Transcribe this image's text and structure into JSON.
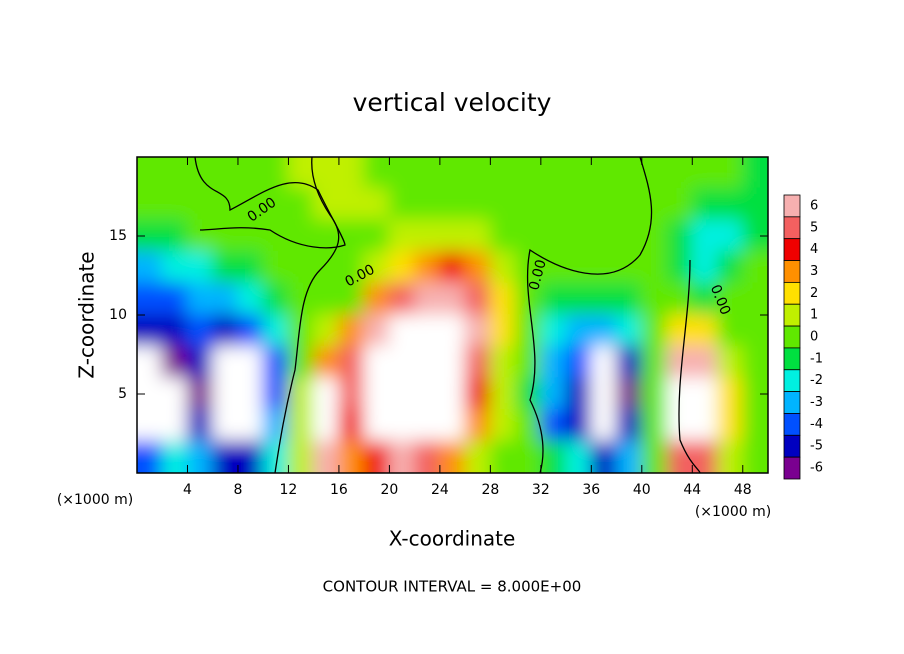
{
  "chart_data": {
    "type": "contour",
    "title": "vertical velocity",
    "x_label": "X-coordinate",
    "y_label": "Z-coordinate",
    "y_unit": "(×1000 m)",
    "x_unit": "(×1000 m)",
    "footer": "CONTOUR INTERVAL = 8.000E+00",
    "contour_labels": [
      "0.00",
      "0.00",
      "0.00",
      "0.00"
    ],
    "x": [
      1,
      3,
      5,
      7,
      9,
      11,
      13,
      15,
      17,
      19,
      21,
      23,
      25,
      27,
      29,
      31,
      33,
      35,
      37,
      39,
      41,
      43,
      45,
      47,
      49
    ],
    "z": [
      19,
      17,
      15,
      13,
      11,
      9,
      7,
      5,
      3,
      1
    ],
    "values": [
      [
        0,
        0,
        0,
        0,
        0,
        0,
        1,
        1,
        1,
        0,
        0,
        0,
        0,
        0,
        0,
        0,
        0,
        0,
        0,
        0,
        0,
        0,
        0,
        0,
        -1
      ],
      [
        0,
        0,
        0,
        0,
        0,
        0,
        0,
        1,
        1,
        1,
        0,
        0,
        0,
        0,
        0,
        0,
        0,
        0,
        0,
        0,
        0,
        0,
        -1,
        -1,
        -1
      ],
      [
        -1,
        -1,
        0,
        0,
        0,
        0,
        0,
        0,
        0,
        0,
        1,
        1,
        1,
        1,
        0,
        0,
        0,
        0,
        0,
        0,
        0,
        -1,
        -2,
        -2,
        -1
      ],
      [
        -3,
        -2,
        -2,
        -1,
        -1,
        0,
        0,
        0,
        0,
        1,
        2,
        3,
        4,
        3,
        1,
        0,
        0,
        0,
        0,
        0,
        0,
        -1,
        -2,
        -1,
        0
      ],
      [
        -4,
        -4,
        -3,
        -3,
        -2,
        -1,
        0,
        0,
        0,
        3,
        5,
        6,
        6,
        5,
        2,
        0,
        -1,
        -1,
        -1,
        -1,
        0,
        0,
        -1,
        0,
        0
      ],
      [
        -5,
        -5,
        -4,
        -5,
        -4,
        -2,
        0,
        1,
        3,
        6,
        9,
        9,
        9,
        6,
        2,
        0,
        -2,
        -3,
        -3,
        -2,
        0,
        2,
        2,
        0,
        0
      ],
      [
        -9,
        -6,
        -5,
        -9,
        -9,
        -4,
        0,
        3,
        5,
        9,
        9,
        9,
        9,
        5,
        1,
        0,
        -3,
        -4,
        -8,
        -5,
        0,
        6,
        6,
        1,
        0
      ],
      [
        -9,
        -8,
        -6,
        -9,
        -9,
        -4,
        1,
        8,
        5,
        8,
        9,
        9,
        9,
        4,
        1,
        -1,
        -3,
        -5,
        -9,
        -6,
        0,
        9,
        9,
        2,
        0
      ],
      [
        -9,
        -9,
        -5,
        -9,
        -9,
        -3,
        1,
        9,
        4,
        7,
        9,
        9,
        7,
        3,
        1,
        0,
        -4,
        -5,
        -9,
        -5,
        0,
        9,
        9,
        2,
        0
      ],
      [
        -4,
        -2,
        -3,
        -5,
        -5,
        -2,
        1,
        6,
        3,
        4,
        6,
        5,
        3,
        1,
        0,
        0,
        -1,
        -2,
        -5,
        -3,
        0,
        5,
        5,
        1,
        0
      ]
    ],
    "xlim": [
      0,
      50
    ],
    "ylim": [
      0,
      20
    ],
    "xticks": [
      4,
      8,
      12,
      16,
      20,
      24,
      28,
      32,
      36,
      40,
      44,
      48
    ],
    "yticks": [
      5,
      10,
      15
    ],
    "colorbar": {
      "levels": [
        6,
        5,
        4,
        3,
        2,
        1,
        0,
        -1,
        -2,
        -3,
        -4,
        -5,
        -6
      ],
      "colors": [
        "#f7b0b0",
        "#f36060",
        "#f00000",
        "#ff9000",
        "#ffe000",
        "#c0f000",
        "#60e800",
        "#00e040",
        "#00f0e0",
        "#00b4ff",
        "#0050ff",
        "#0000c0",
        "#7a0090"
      ]
    }
  }
}
